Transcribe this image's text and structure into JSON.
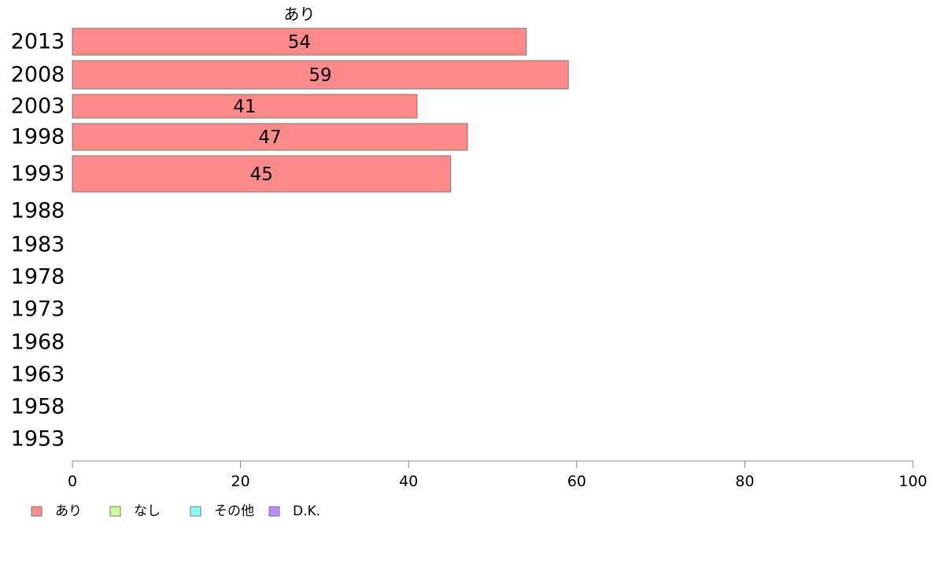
{
  "chart_data": {
    "type": "bar",
    "orientation": "horizontal",
    "stacked": true,
    "categories": [
      "2013",
      "2008",
      "2003",
      "1998",
      "1993",
      "1988",
      "1983",
      "1978",
      "1973",
      "1968",
      "1963",
      "1958",
      "1953"
    ],
    "series": [
      {
        "name": "あり",
        "color": "#ff8a8a",
        "values": [
          54,
          59,
          41,
          47,
          45,
          null,
          null,
          null,
          null,
          null,
          null,
          null,
          null
        ]
      },
      {
        "name": "なし",
        "color": "#ccff99",
        "values": [
          null,
          null,
          null,
          null,
          null,
          null,
          null,
          null,
          null,
          null,
          null,
          null,
          null
        ]
      },
      {
        "name": "その他",
        "color": "#88ffff",
        "values": [
          null,
          null,
          null,
          null,
          null,
          null,
          null,
          null,
          null,
          null,
          null,
          null,
          null
        ]
      },
      {
        "name": "D.K.",
        "color": "#bb88ff",
        "values": [
          null,
          null,
          null,
          null,
          null,
          null,
          null,
          null,
          null,
          null,
          null,
          null,
          null
        ]
      }
    ],
    "series_header": "あり",
    "xlim": [
      0,
      100
    ],
    "xticks": [
      0,
      20,
      40,
      60,
      80,
      100
    ],
    "grid": false,
    "legend_position": "bottom-left"
  }
}
